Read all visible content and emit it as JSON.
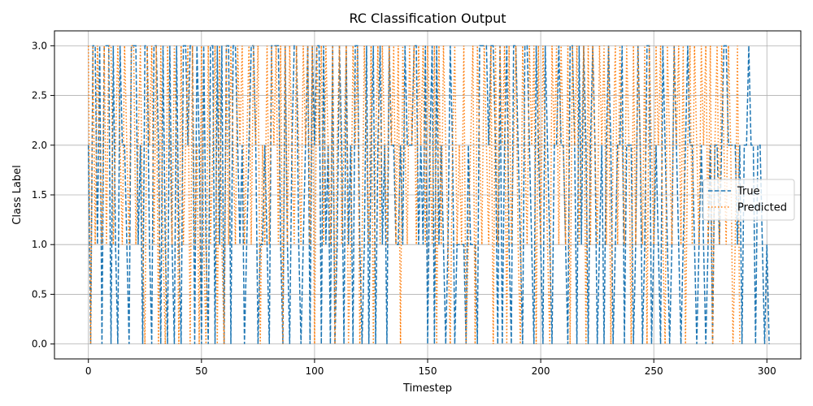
{
  "chart_data": {
    "type": "line",
    "title": "RC Classification Output",
    "xlabel": "Timestep",
    "ylabel": "Class Label",
    "xlim": [
      -15,
      315
    ],
    "ylim": [
      -0.15,
      3.15
    ],
    "xticks": [
      0,
      50,
      100,
      150,
      200,
      250,
      300
    ],
    "xtick_labels": [
      "0",
      "50",
      "100",
      "150",
      "200",
      "250",
      "300"
    ],
    "yticks": [
      0.0,
      0.5,
      1.0,
      1.5,
      2.0,
      2.5,
      3.0
    ],
    "ytick_labels": [
      "0.0",
      "0.5",
      "1.0",
      "1.5",
      "2.0",
      "2.5",
      "3.0"
    ],
    "grid": true,
    "legend": "center-right",
    "series": [
      {
        "name": "True",
        "color": "#1f77b4",
        "linestyle": "dashed",
        "x_start": 0,
        "values": [
          2,
          0,
          3,
          3,
          1,
          3,
          0,
          3,
          3,
          3,
          0,
          3,
          1,
          0,
          3,
          2,
          2,
          1,
          0,
          3,
          3,
          3,
          1,
          2,
          0,
          3,
          3,
          1,
          0,
          3,
          3,
          2,
          0,
          3,
          1,
          0,
          3,
          1,
          0,
          3,
          1,
          0,
          3,
          3,
          2,
          3,
          3,
          0,
          3,
          2,
          0,
          3,
          1,
          0,
          3,
          3,
          0,
          3,
          1,
          3,
          0,
          3,
          3,
          0,
          3,
          3,
          2,
          1,
          2,
          0,
          1,
          2,
          3,
          3,
          2,
          0,
          1,
          1,
          2,
          1,
          0,
          3,
          3,
          3,
          3,
          1,
          0,
          3,
          1,
          0,
          2,
          3,
          3,
          1,
          0,
          1,
          2,
          3,
          0,
          3,
          2,
          3,
          3,
          0,
          3,
          1,
          2,
          0,
          3,
          0,
          1,
          3,
          2,
          0,
          3,
          1,
          2,
          0,
          3,
          3,
          1,
          0,
          1,
          3,
          0,
          2,
          3,
          0,
          2,
          3,
          1,
          2,
          0,
          3,
          2,
          2,
          1,
          1,
          2,
          1,
          3,
          2,
          2,
          2,
          3,
          3,
          1,
          2,
          1,
          3,
          0,
          2,
          3,
          0,
          3,
          1,
          2,
          1,
          0,
          1,
          3,
          2,
          0,
          1,
          1,
          1,
          1,
          0,
          2,
          1,
          1,
          1,
          0,
          3,
          3,
          3,
          3,
          2,
          3,
          3,
          2,
          0,
          3,
          0,
          2,
          3,
          1,
          0,
          3,
          3,
          2,
          1,
          0,
          3,
          3,
          2,
          1,
          0,
          3,
          2,
          1,
          0,
          3,
          2,
          1,
          0,
          2,
          2,
          3,
          2,
          2,
          1,
          0,
          3,
          3,
          2,
          0,
          3,
          1,
          3,
          2,
          0,
          2,
          3,
          2,
          0,
          1,
          2,
          0,
          2,
          3,
          2,
          0,
          1,
          2,
          2,
          3,
          0,
          2,
          2,
          2,
          0,
          1,
          3,
          2,
          0,
          1,
          3,
          3,
          0,
          1,
          2,
          1,
          0,
          3,
          2,
          1,
          0,
          1,
          3,
          2,
          1,
          0,
          1,
          2,
          3,
          2,
          2,
          1,
          0,
          1,
          2,
          1,
          0,
          1,
          2,
          0,
          2,
          2,
          1,
          2,
          3,
          3,
          2,
          2,
          2,
          2,
          1,
          2,
          0,
          2,
          2,
          3,
          2,
          2,
          0,
          2,
          2,
          1,
          0,
          1,
          0
        ]
      },
      {
        "name": "Predicted",
        "color": "#ff7f0e",
        "linestyle": "dotted",
        "x_start": 0,
        "values": [
          3,
          0,
          3,
          1,
          3,
          2,
          1,
          3,
          1,
          3,
          3,
          1,
          2,
          3,
          2,
          1,
          3,
          2,
          1,
          3,
          3,
          1,
          2,
          3,
          1,
          0,
          3,
          2,
          3,
          1,
          3,
          0,
          3,
          1,
          0,
          3,
          2,
          1,
          3,
          2,
          0,
          3,
          1,
          2,
          3,
          0,
          3,
          1,
          2,
          0,
          3,
          1,
          0,
          3,
          1,
          2,
          3,
          0,
          3,
          1,
          0,
          3,
          1,
          3,
          2,
          1,
          3,
          2,
          3,
          1,
          2,
          3,
          1,
          3,
          2,
          3,
          0,
          2,
          1,
          3,
          1,
          3,
          2,
          3,
          1,
          3,
          0,
          3,
          1,
          3,
          2,
          1,
          3,
          2,
          1,
          3,
          2,
          3,
          1,
          3,
          0,
          3,
          2,
          3,
          1,
          3,
          2,
          1,
          3,
          0,
          2,
          3,
          1,
          2,
          3,
          0,
          1,
          3,
          2,
          3,
          0,
          1,
          3,
          2,
          1,
          3,
          0,
          2,
          3,
          1,
          3,
          2,
          1,
          3,
          2,
          3,
          1,
          3,
          0,
          3,
          2,
          1,
          3,
          2,
          3,
          1,
          3,
          2,
          3,
          1,
          3,
          2,
          1,
          3,
          0,
          3,
          1,
          3,
          2,
          1,
          0,
          2,
          3,
          1,
          2,
          1,
          3,
          0,
          1,
          2,
          3,
          0,
          3,
          2,
          1,
          3,
          2,
          1,
          3,
          0,
          3,
          1,
          3,
          2,
          3,
          0,
          3,
          1,
          2,
          3,
          1,
          0,
          3,
          2,
          1,
          3,
          2,
          3,
          0,
          3,
          1,
          3,
          2,
          1,
          0,
          3,
          2,
          3,
          1,
          3,
          2,
          1,
          3,
          0,
          3,
          2,
          3,
          1,
          2,
          3,
          0,
          3,
          1,
          3,
          2,
          1,
          3,
          2,
          3,
          1,
          3,
          0,
          2,
          3,
          1,
          3,
          2,
          1,
          3,
          2,
          0,
          3,
          1,
          3,
          2,
          1,
          3,
          0,
          3,
          2,
          1,
          3,
          2,
          3,
          1,
          0,
          3,
          2,
          1,
          3,
          2,
          3,
          1,
          3,
          0,
          2,
          3,
          1,
          3,
          2,
          1,
          3,
          2,
          3,
          1,
          3,
          0,
          2,
          3,
          1,
          3,
          2,
          1,
          3,
          2,
          0,
          1,
          3,
          0
        ]
      }
    ]
  }
}
